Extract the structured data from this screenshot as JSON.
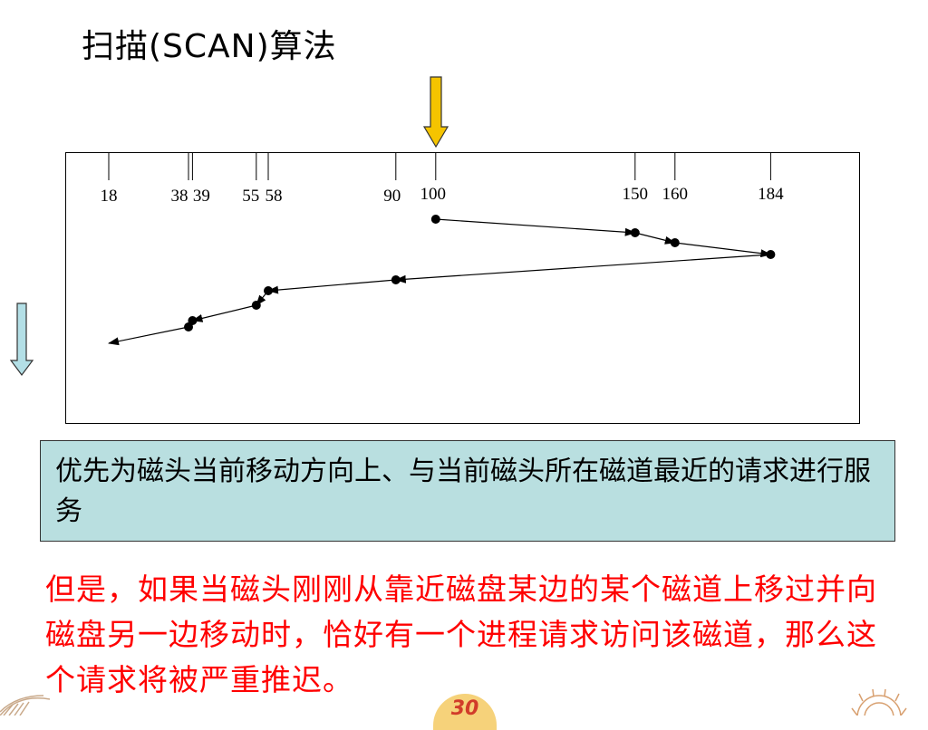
{
  "slide": {
    "title": "扫描(SCAN)算法",
    "description": "优先为磁头当前移动方向上、与当前磁头所在磁道最近的请求进行服务",
    "caveat": "但是，如果当磁头刚刚从靠近磁盘某边的某个磁道上移过并向磁盘另一边移动时，恰好有一个进程请求访问该磁道，那么这个请求将被严重推迟。",
    "page_number": "30"
  },
  "diagram": {
    "tracks": [
      18,
      38,
      39,
      55,
      58,
      90,
      100,
      150,
      160,
      184
    ],
    "track_labels": [
      "18",
      "38",
      "39",
      "55",
      "58",
      "90",
      "100",
      "150",
      "160",
      "184"
    ],
    "start_track": 100,
    "service_order": [
      100,
      150,
      160,
      184,
      90,
      58,
      55,
      39,
      38,
      18
    ],
    "colors": {
      "start_arrow": "#f5c400",
      "direction_arrow": "#b3dfe6",
      "note_background": "#b9dfe0",
      "caveat_text": "#ff0000"
    }
  }
}
